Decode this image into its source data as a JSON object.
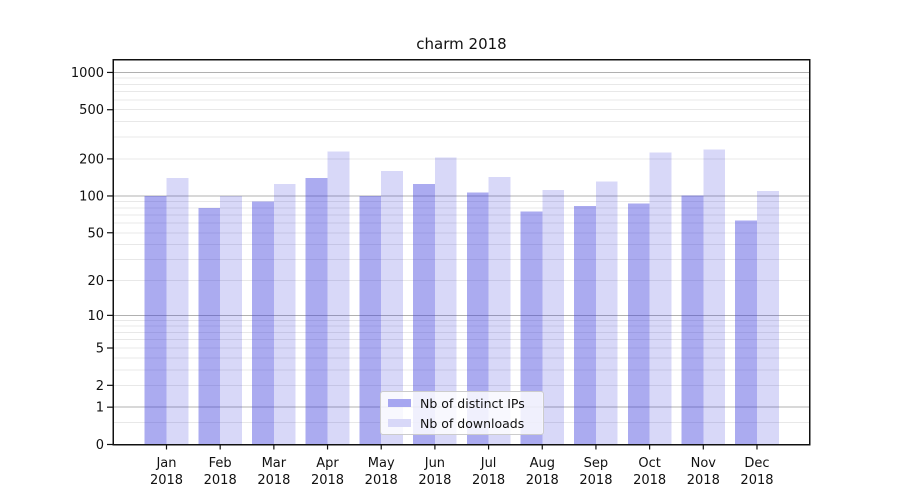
{
  "title": "charm 2018",
  "chart_data": {
    "type": "bar",
    "title": "charm 2018",
    "categories": [
      "Jan 2018",
      "Feb 2018",
      "Mar 2018",
      "Apr 2018",
      "May 2018",
      "Jun 2018",
      "Jul 2018",
      "Aug 2018",
      "Sep 2018",
      "Oct 2018",
      "Nov 2018",
      "Dec 2018"
    ],
    "series": [
      {
        "name": "Nb of distinct IPs",
        "key": "distinct-ips",
        "color": "rgba(60,60,220,0.43)",
        "legend_color": "#a6a6f0",
        "values": [
          100,
          80,
          90,
          140,
          100,
          125,
          107,
          75,
          83,
          87,
          101,
          63
        ]
      },
      {
        "name": "Nb of downloads",
        "key": "downloads",
        "color": "rgba(60,60,220,0.20)",
        "legend_color": "#d8d8f8",
        "values": [
          140,
          100,
          125,
          230,
          160,
          205,
          142,
          112,
          131,
          225,
          238,
          110
        ]
      }
    ],
    "xlabel": "",
    "ylabel": "",
    "yscale": "log(1+y)",
    "ylim": [
      0,
      1270
    ],
    "yticks": [
      0,
      1,
      2,
      5,
      10,
      20,
      50,
      100,
      200,
      500,
      1000
    ],
    "minor_yticks": [
      0.5,
      3,
      4,
      6,
      7,
      8,
      9,
      30,
      40,
      60,
      70,
      80,
      90,
      300,
      400,
      600,
      700,
      800,
      900
    ],
    "decade_ticks": [
      1,
      10,
      100,
      1000
    ],
    "grid": true,
    "legend_position": "lower center"
  },
  "colors": {
    "background": "#ffffff",
    "axis": "#111111",
    "major_grid": "#b0b0b0",
    "minor_grid": "#e8e8e8",
    "bar_dark": "#a6a6f0",
    "bar_light": "#d8d8f8"
  }
}
